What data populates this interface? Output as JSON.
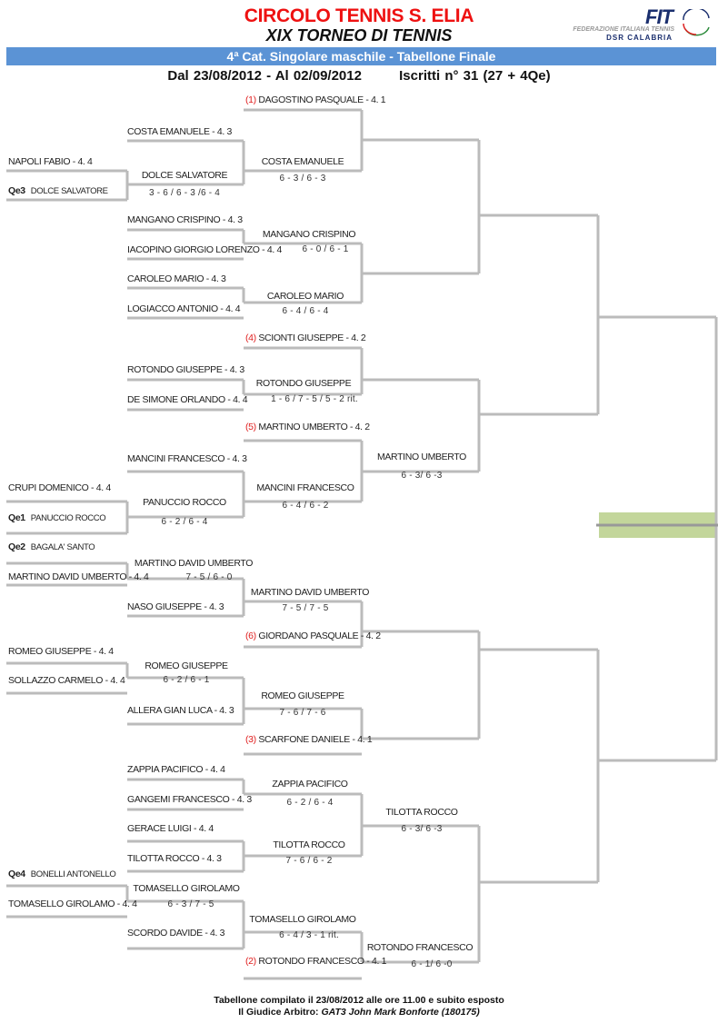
{
  "header": {
    "club": "CIRCOLO TENNIS S. ELIA",
    "tournament": "XIX TORNEO DI TENNIS",
    "category": "4ª Cat. Singolare maschile - Tabellone Finale",
    "dates": "Dal 23/08/2012 - Al 02/09/2012",
    "entrants": "Iscritti n° 31 (27 + 4Qe)",
    "logo": {
      "fit": "FIT",
      "federation": "FEDERAZIONE ITALIANA TENNIS",
      "region": "DSR CALABRIA"
    }
  },
  "colors": {
    "title": "#ee1111",
    "bar": "#5b93d5",
    "seed": "#e02020",
    "lines": "#bbbbbb",
    "final_box": "#c3d69b"
  },
  "players": [
    {
      "seed": "(1)",
      "name": "DAGOSTINO PASQUALE - 4. 1"
    },
    {
      "name": "COSTA EMANUELE - 4. 3"
    },
    {
      "name": "NAPOLI FABIO - 4. 4"
    },
    {
      "qe": "Qe3",
      "name": "DOLCE SALVATORE"
    },
    {
      "name": "MANGANO CRISPINO - 4. 3"
    },
    {
      "name": "IACOPINO GIORGIO LORENZO - 4. 4"
    },
    {
      "name": "CAROLEO MARIO - 4. 3"
    },
    {
      "name": "LOGIACCO ANTONIO - 4. 4"
    },
    {
      "seed": "(4)",
      "name": "SCIONTI GIUSEPPE - 4. 2"
    },
    {
      "name": "ROTONDO GIUSEPPE - 4. 3"
    },
    {
      "name": "DE SIMONE ORLANDO - 4. 4"
    },
    {
      "seed": "(5)",
      "name": "MARTINO UMBERTO - 4. 2"
    },
    {
      "name": "MANCINI FRANCESCO - 4. 3"
    },
    {
      "name": "CRUPI DOMENICO - 4. 4"
    },
    {
      "qe": "Qe1",
      "name": "PANUCCIO ROCCO"
    },
    {
      "qe": "Qe2",
      "name": "BAGALA' SANTO"
    },
    {
      "name": "MARTINO DAVID UMBERTO - 4. 4"
    },
    {
      "name": "NASO GIUSEPPE - 4. 3"
    },
    {
      "seed": "(6)",
      "name": "GIORDANO PASQUALE - 4. 2"
    },
    {
      "name": "ROMEO GIUSEPPE - 4. 4"
    },
    {
      "name": "SOLLAZZO CARMELO - 4. 4"
    },
    {
      "name": "ALLERA GIAN LUCA - 4. 3"
    },
    {
      "seed": "(3)",
      "name": "SCARFONE DANIELE - 4. 1"
    },
    {
      "name": "ZAPPIA PACIFICO - 4. 4"
    },
    {
      "name": "GANGEMI FRANCESCO - 4. 3"
    },
    {
      "name": "GERACE LUIGI - 4. 4"
    },
    {
      "name": "TILOTTA ROCCO - 4. 3"
    },
    {
      "qe": "Qe4",
      "name": "BONELLI ANTONELLO"
    },
    {
      "name": "TOMASELLO GIROLAMO - 4. 4"
    },
    {
      "name": "SCORDO DAVIDE - 4. 3"
    },
    {
      "seed": "(2)",
      "name": "ROTONDO FRANCESCO - 4. 1"
    }
  ],
  "results": [
    {
      "winner": "DOLCE SALVATORE",
      "score": "3 - 6 / 6 - 3 /6 - 4"
    },
    {
      "winner": "COSTA EMANUELE",
      "score": "6 - 3 / 6 - 3"
    },
    {
      "winner": "MANGANO CRISPINO",
      "score": "6 - 0 / 6 - 1"
    },
    {
      "winner": "CAROLEO MARIO",
      "score": "6 - 4 / 6 - 4"
    },
    {
      "winner": "ROTONDO GIUSEPPE",
      "score": "1 - 6 / 7 - 5 / 5 - 2 rit."
    },
    {
      "winner": "MARTINO UMBERTO",
      "score": "6 - 3/ 6 -3"
    },
    {
      "winner": "PANUCCIO ROCCO",
      "score": "6 - 2 / 6 - 4"
    },
    {
      "winner": "MANCINI FRANCESCO",
      "score": "6 - 4 / 6 - 2"
    },
    {
      "winner": "MARTINO DAVID UMBERTO",
      "score": "7 - 5 / 6 - 0"
    },
    {
      "winner": "MARTINO DAVID UMBERTO",
      "score": "7 - 5 / 7 - 5"
    },
    {
      "winner": "ROMEO GIUSEPPE",
      "score": "6 - 2 / 6 - 1"
    },
    {
      "winner": "ROMEO GIUSEPPE",
      "score": "7 - 6 / 7 - 6"
    },
    {
      "winner": "ZAPPIA PACIFICO",
      "score": "6 - 2 / 6 - 4"
    },
    {
      "winner": "TILOTTA ROCCO",
      "score": "7 - 6 / 6 - 2"
    },
    {
      "winner": "TILOTTA ROCCO",
      "score": "6 - 3/ 6 -3"
    },
    {
      "winner": "TOMASELLO GIROLAMO",
      "score": "6 - 3 / 7 - 5"
    },
    {
      "winner": "TOMASELLO GIROLAMO",
      "score": "6 - 4 / 3 - 1 rit."
    },
    {
      "winner": "ROTONDO FRANCESCO",
      "score": "6 - 1/ 6 -0"
    }
  ],
  "footer": {
    "compiled": "Tabellone compilato il 23/08/2012 alle ore 11.00 e subito esposto",
    "referee_label": "Il Giudice Arbitro:",
    "referee": "GAT3 John Mark Bonforte (180175)"
  }
}
